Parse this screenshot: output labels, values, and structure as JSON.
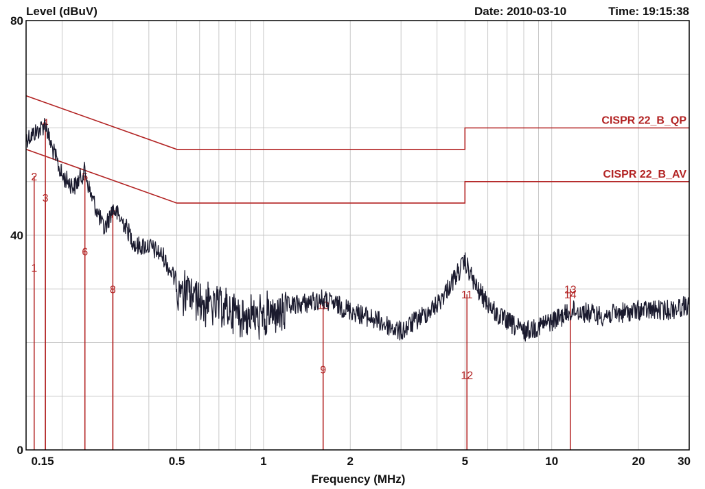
{
  "header": {
    "ylabel": "Level (dBuV)",
    "date_label": "Date: 2010-03-10",
    "time_label": "Time: 19:15:38"
  },
  "colors": {
    "trace": "#1a1a2e",
    "limit": "#b22222",
    "marker": "#b22222",
    "grid": "#c8c8c8",
    "frame": "#000000"
  },
  "chart_data": {
    "type": "line",
    "title": "",
    "xlabel": "Frequency (MHz)",
    "ylabel": "Level (dBuV)",
    "xscale": "log",
    "xlim": [
      0.15,
      30
    ],
    "ylim": [
      0,
      80
    ],
    "grid": true,
    "x_ticks": [
      0.15,
      0.5,
      1,
      2,
      5,
      10,
      20,
      30
    ],
    "x_tick_labels": [
      "0.15",
      "0.5",
      "1",
      "2",
      "5",
      "10",
      "20",
      "30"
    ],
    "y_ticks": [
      0,
      40,
      80
    ],
    "y_tick_labels": [
      "0",
      "40",
      "80"
    ],
    "limits": [
      {
        "name": "CISPR 22_B_QP",
        "points": [
          [
            0.15,
            66
          ],
          [
            0.5,
            56
          ],
          [
            5,
            56
          ],
          [
            5,
            60
          ],
          [
            30,
            60
          ]
        ]
      },
      {
        "name": "CISPR 22_B_AV",
        "points": [
          [
            0.15,
            56
          ],
          [
            0.5,
            46
          ],
          [
            5,
            46
          ],
          [
            5,
            50
          ],
          [
            30,
            50
          ]
        ]
      }
    ],
    "markers": [
      {
        "id": "1",
        "freq": 0.16,
        "level": 34
      },
      {
        "id": "2",
        "freq": 0.16,
        "level": 51
      },
      {
        "id": "3",
        "freq": 0.175,
        "level": 47
      },
      {
        "id": "4",
        "freq": 0.175,
        "level": 61
      },
      {
        "id": "5",
        "freq": 0.24,
        "level": 51
      },
      {
        "id": "6",
        "freq": 0.24,
        "level": 37
      },
      {
        "id": "7",
        "freq": 0.3,
        "level": 44
      },
      {
        "id": "8",
        "freq": 0.3,
        "level": 30
      },
      {
        "id": "9",
        "freq": 1.61,
        "level": 15
      },
      {
        "id": "10",
        "freq": 1.61,
        "level": 27
      },
      {
        "id": "11",
        "freq": 5.08,
        "level": 29
      },
      {
        "id": "12",
        "freq": 5.08,
        "level": 14
      },
      {
        "id": "13",
        "freq": 11.6,
        "level": 30
      },
      {
        "id": "14",
        "freq": 11.6,
        "level": 29
      }
    ],
    "trace_envelope": {
      "x": [
        0.15,
        0.16,
        0.17,
        0.175,
        0.18,
        0.2,
        0.22,
        0.24,
        0.25,
        0.28,
        0.3,
        0.33,
        0.36,
        0.4,
        0.45,
        0.5,
        0.6,
        0.8,
        1.0,
        1.3,
        1.6,
        2.0,
        2.5,
        3.0,
        4.0,
        5.0,
        5.5,
        6.5,
        8.0,
        10,
        12,
        15,
        20,
        25,
        30
      ],
      "y": [
        58,
        59,
        60,
        61,
        58,
        51,
        49,
        52,
        48,
        41,
        45,
        42,
        38,
        38,
        36,
        31,
        29,
        27,
        26,
        27,
        28,
        26,
        24,
        22,
        27,
        35,
        30,
        25,
        22,
        24,
        26,
        25,
        26,
        26,
        27
      ]
    }
  }
}
